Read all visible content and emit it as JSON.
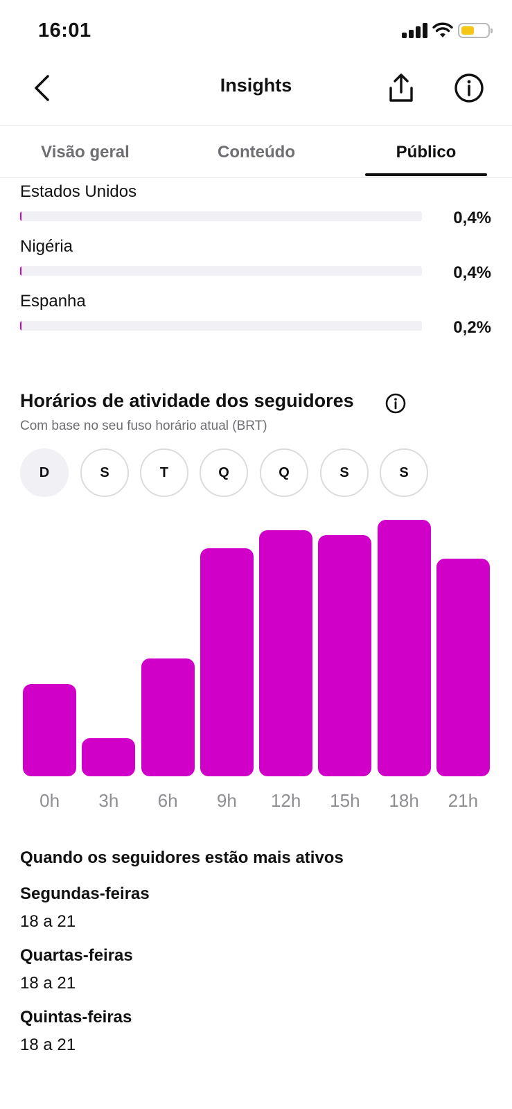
{
  "status_bar": {
    "time": "16:01"
  },
  "header": {
    "title": "Insights"
  },
  "tabs": [
    {
      "label": "Visão geral",
      "active": false
    },
    {
      "label": "Conteúdo",
      "active": false
    },
    {
      "label": "Público",
      "active": true
    }
  ],
  "countries": [
    {
      "name": "Estados Unidos",
      "percent": "0,4%",
      "value": 0.4
    },
    {
      "name": "Nigéria",
      "percent": "0,4%",
      "value": 0.4
    },
    {
      "name": "Espanha",
      "percent": "0,2%",
      "value": 0.2
    }
  ],
  "activity": {
    "title": "Horários de atividade dos seguidores",
    "subtitle": "Com base no seu fuso horário atual (BRT)",
    "days": [
      "D",
      "S",
      "T",
      "Q",
      "Q",
      "S",
      "S"
    ],
    "selected_day_index": 0
  },
  "chart_data": {
    "type": "bar",
    "categories": [
      "0h",
      "3h",
      "6h",
      "9h",
      "12h",
      "15h",
      "18h",
      "21h"
    ],
    "values": [
      36,
      15,
      46,
      89,
      96,
      94,
      100,
      85
    ],
    "ylim": [
      0,
      100
    ],
    "grid": false,
    "color": "#d100c9"
  },
  "most_active": {
    "title": "Quando os seguidores estão mais ativos",
    "items": [
      {
        "day": "Segundas-feiras",
        "range": "18 a 21"
      },
      {
        "day": "Quartas-feiras",
        "range": "18 a 21"
      },
      {
        "day": "Quintas-feiras",
        "range": "18 a 21"
      }
    ]
  },
  "icons": {
    "back": "chevron-left-icon",
    "share": "share-icon",
    "info": "info-icon"
  }
}
